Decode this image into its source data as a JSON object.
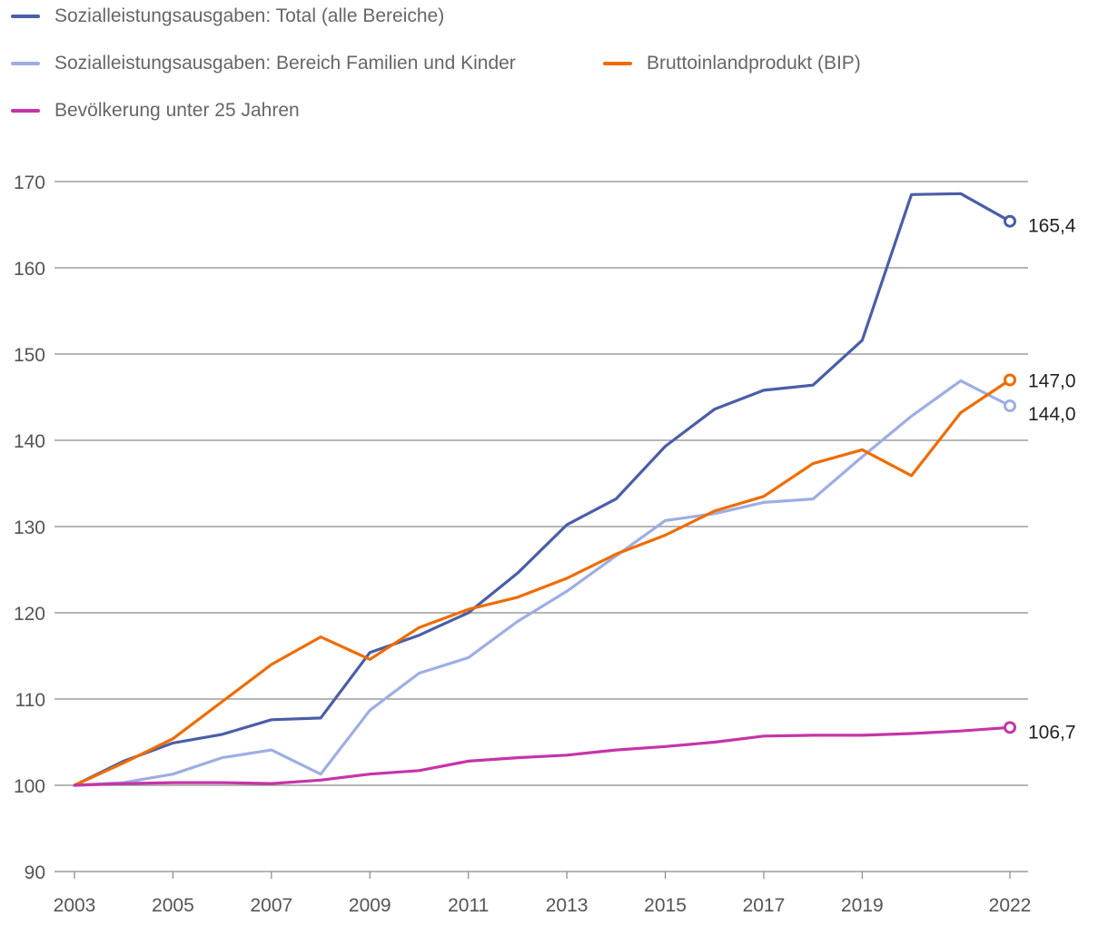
{
  "chart_data": {
    "type": "line",
    "title": "",
    "xlabel": "",
    "ylabel": "",
    "ylim": [
      90,
      170
    ],
    "y_ticks": [
      90,
      100,
      110,
      120,
      130,
      140,
      150,
      160,
      170
    ],
    "x_ticks": [
      2003,
      2005,
      2007,
      2009,
      2011,
      2013,
      2015,
      2017,
      2019,
      2022
    ],
    "x": [
      2003,
      2004,
      2005,
      2006,
      2007,
      2008,
      2009,
      2010,
      2011,
      2012,
      2013,
      2014,
      2015,
      2016,
      2017,
      2018,
      2019,
      2020,
      2021,
      2022
    ],
    "grid": true,
    "legend_placement": "top-left",
    "series": [
      {
        "name": "Sozialleistungsausgaben: Total (alle Bereiche)",
        "color": "#4a5ea8",
        "values": [
          100,
          102.8,
          104.9,
          105.9,
          107.6,
          107.8,
          115.4,
          117.4,
          120.0,
          124.6,
          130.2,
          133.2,
          139.3,
          143.6,
          145.8,
          146.4,
          151.6,
          168.5,
          168.6,
          165.4
        ],
        "end_label": "165,4"
      },
      {
        "name": "Sozialleistungsausgaben: Bereich Familien und Kinder",
        "color": "#9eaee3",
        "values": [
          100,
          100.3,
          101.3,
          103.2,
          104.1,
          101.3,
          108.7,
          113.0,
          114.8,
          119.0,
          122.5,
          126.6,
          130.7,
          131.5,
          132.8,
          133.2,
          138.1,
          142.8,
          146.9,
          144.0
        ],
        "end_label": "144,0"
      },
      {
        "name": "Bruttoinlandprodukt (BIP)",
        "color": "#ef6c00",
        "values": [
          100,
          102.6,
          105.4,
          109.7,
          114.0,
          117.2,
          114.6,
          118.3,
          120.4,
          121.8,
          124.0,
          126.8,
          129.0,
          131.8,
          133.5,
          137.3,
          138.9,
          135.9,
          143.2,
          147.0
        ],
        "end_label": "147,0"
      },
      {
        "name": "Bevölkerung unter 25 Jahren",
        "color": "#c634a8",
        "values": [
          100,
          100.2,
          100.3,
          100.3,
          100.2,
          100.6,
          101.3,
          101.7,
          102.8,
          103.2,
          103.5,
          104.1,
          104.5,
          105.0,
          105.7,
          105.8,
          105.8,
          106.0,
          106.3,
          106.7
        ],
        "end_label": "106,7"
      }
    ]
  }
}
